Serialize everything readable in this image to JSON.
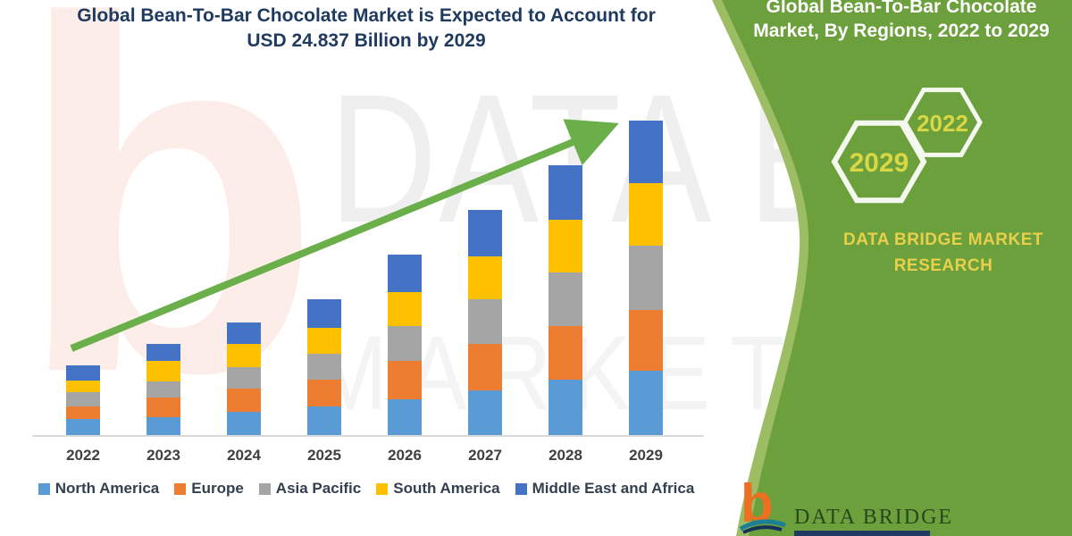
{
  "chart_panel": {
    "title_line1": "Global Bean-To-Bar Chocolate Market is Expected to Account for",
    "title_line2": "USD 24.837 Billion by 2029",
    "title_color": "#1f3a5f"
  },
  "chart_data": {
    "type": "bar",
    "stacked": true,
    "title": "Global Bean-To-Bar Chocolate Market is Expected to Account for USD 24.837 Billion by 2029",
    "units": "USD Billion (estimated from bar heights)",
    "categories": [
      "2022",
      "2023",
      "2024",
      "2025",
      "2026",
      "2027",
      "2028",
      "2029"
    ],
    "series": [
      {
        "name": "North America",
        "color": "#5B9BD5",
        "values": [
          1.27,
          1.41,
          1.84,
          2.26,
          2.82,
          3.53,
          4.38,
          5.08
        ]
      },
      {
        "name": "Europe",
        "color": "#ED7D31",
        "values": [
          0.99,
          1.55,
          1.84,
          2.12,
          3.03,
          3.67,
          4.24,
          4.8
        ]
      },
      {
        "name": "Asia Pacific",
        "color": "#A5A5A5",
        "values": [
          1.13,
          1.27,
          1.69,
          2.05,
          2.75,
          3.53,
          4.24,
          5.08
        ]
      },
      {
        "name": "South America",
        "color": "#FFC000",
        "values": [
          0.92,
          1.62,
          1.84,
          2.05,
          2.68,
          3.39,
          4.17,
          4.94
        ]
      },
      {
        "name": "Middle East and Africa",
        "color": "#4472C4",
        "values": [
          1.2,
          1.34,
          1.69,
          2.26,
          2.96,
          3.67,
          4.31,
          4.94
        ]
      }
    ],
    "estimated_totals": [
      5.51,
      7.19,
      8.9,
      10.74,
      14.24,
      17.79,
      21.34,
      24.84
    ],
    "final_value_label": "USD 24.837 Billion",
    "final_year": "2029",
    "legend_position": "bottom",
    "grid": false,
    "y_axis_shown": false,
    "ylim": [
      0,
      26
    ],
    "annotations": [
      "green upward trend arrow from 2022 to 2029"
    ],
    "arrow_color": "#6aaf4a"
  },
  "sidebar": {
    "background_color": "#6ba03c",
    "edge_accent_color": "#9cbd63",
    "heading_line1": "Global Bean-To-Bar Chocolate",
    "heading_line2": "Market, By Regions, 2022 to 2029",
    "hexagons": [
      {
        "label": "2029"
      },
      {
        "label": "2022"
      }
    ],
    "brand_line1": "DATA BRIDGE MARKET",
    "brand_line2": "RESEARCH",
    "brand_text_color": "#e9d04b"
  },
  "footer_logo": {
    "mark": "b",
    "brand": "DATA BRIDGE"
  },
  "watermarks": {
    "letter": "b",
    "text1": "DATA BRI",
    "text2": "MARKET RE"
  }
}
